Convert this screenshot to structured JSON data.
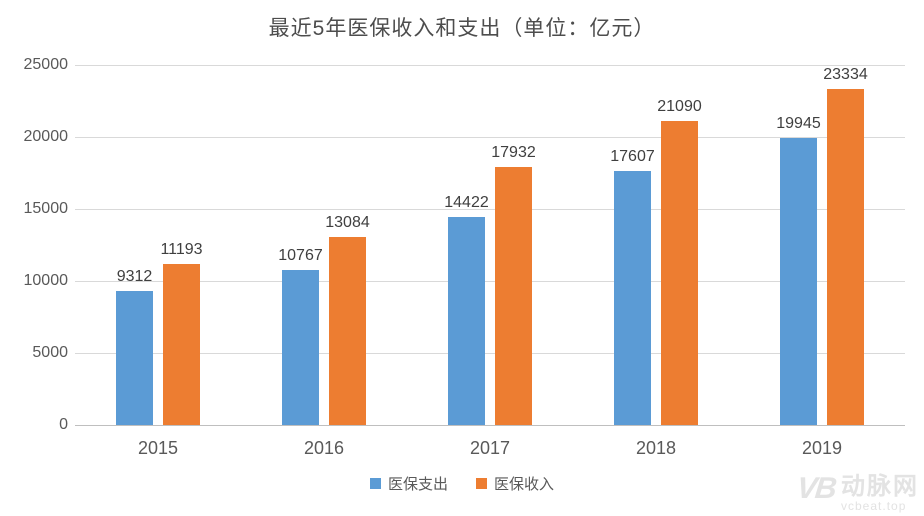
{
  "watermark": {
    "logo": "VB",
    "brand": "动脉网",
    "site": "vcbeat.top"
  },
  "chart_data": {
    "type": "bar",
    "title": "最近5年医保收入和支出（单位：亿元）",
    "categories": [
      "2015",
      "2016",
      "2017",
      "2018",
      "2019"
    ],
    "series": [
      {
        "name": "医保支出",
        "color": "#5B9BD5",
        "values": [
          9312,
          10767,
          14422,
          17607,
          19945
        ]
      },
      {
        "name": "医保收入",
        "color": "#ED7D31",
        "values": [
          11193,
          13084,
          17932,
          21090,
          23334
        ]
      }
    ],
    "xlabel": "",
    "ylabel": "",
    "ylim": [
      0,
      25000
    ],
    "yticks": [
      0,
      5000,
      10000,
      15000,
      20000,
      25000
    ],
    "grid": true,
    "legend_position": "bottom"
  }
}
